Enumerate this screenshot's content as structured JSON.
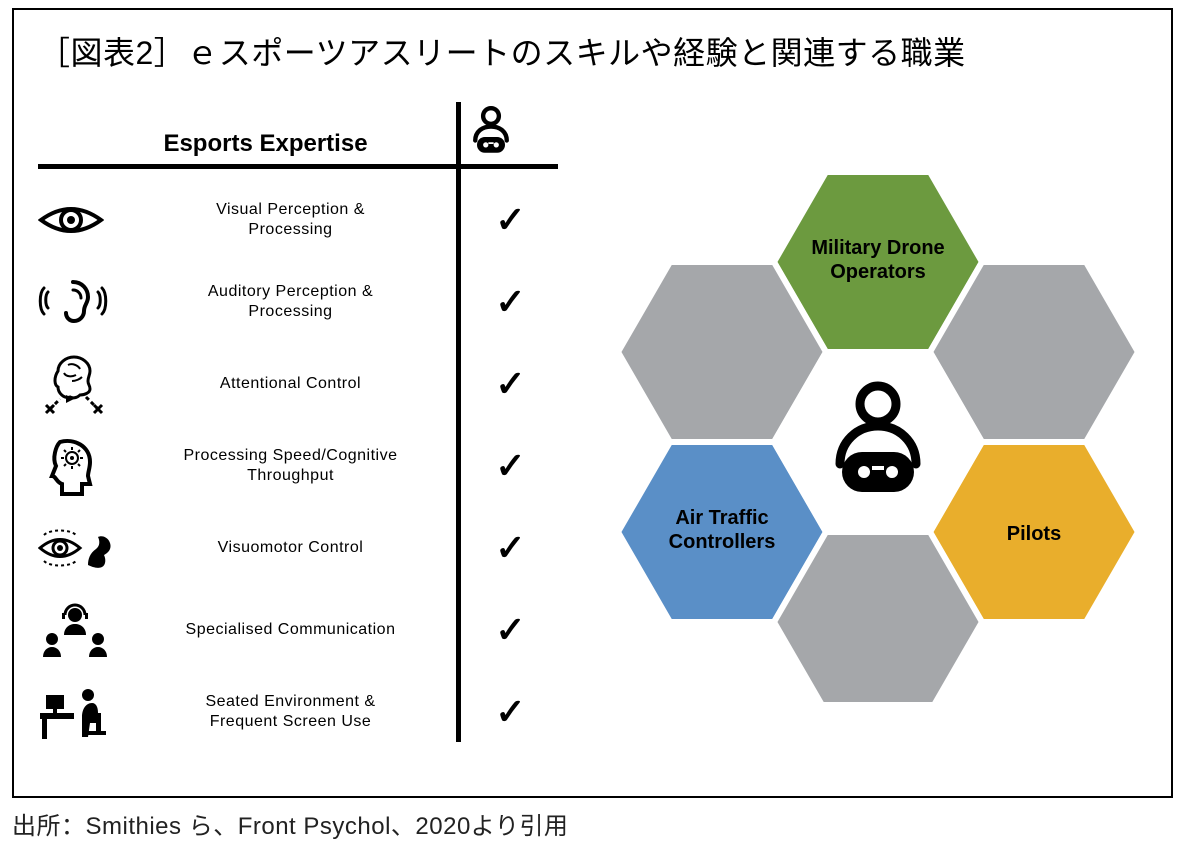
{
  "title": "［図表2］ｅスポーツアスリートのスキルや経験と関連する職業",
  "caption": "出所：Smithies ら、Front Psychol、2020より引用",
  "table": {
    "header_label": "Esports Expertise",
    "rows": [
      {
        "icon": "eye",
        "label": "Visual Perception &\nProcessing",
        "check": true
      },
      {
        "icon": "ear",
        "label": "Auditory Perception &\nProcessing",
        "check": true
      },
      {
        "icon": "brain",
        "label": "Attentional Control",
        "check": true
      },
      {
        "icon": "head",
        "label": "Processing Speed/Cognitive\nThroughput",
        "check": true
      },
      {
        "icon": "eyearm",
        "label": "Visuomotor Control",
        "check": true
      },
      {
        "icon": "team",
        "label": "Specialised Communication",
        "check": true
      },
      {
        "icon": "desk",
        "label": "Seated Environment &\nFrequent Screen Use",
        "check": true
      }
    ]
  },
  "hex": {
    "top": {
      "label": "Military Drone\nOperators",
      "color": "#6c9a3f"
    },
    "left": {
      "label": "Air Traffic\nControllers",
      "color": "#5a8fc7"
    },
    "right": {
      "label": "Pilots",
      "color": "#e9ae2c"
    },
    "gray_color": "#a5a7aa",
    "center_bg": "#ffffff",
    "stroke": "#ffffff",
    "stroke_width": 6
  },
  "colors": {
    "text": "#000000",
    "border": "#000000",
    "background": "#ffffff"
  },
  "fonts": {
    "title_size": 32,
    "header_size": 24,
    "row_size": 16,
    "hex_label_size": 18,
    "caption_size": 24
  }
}
